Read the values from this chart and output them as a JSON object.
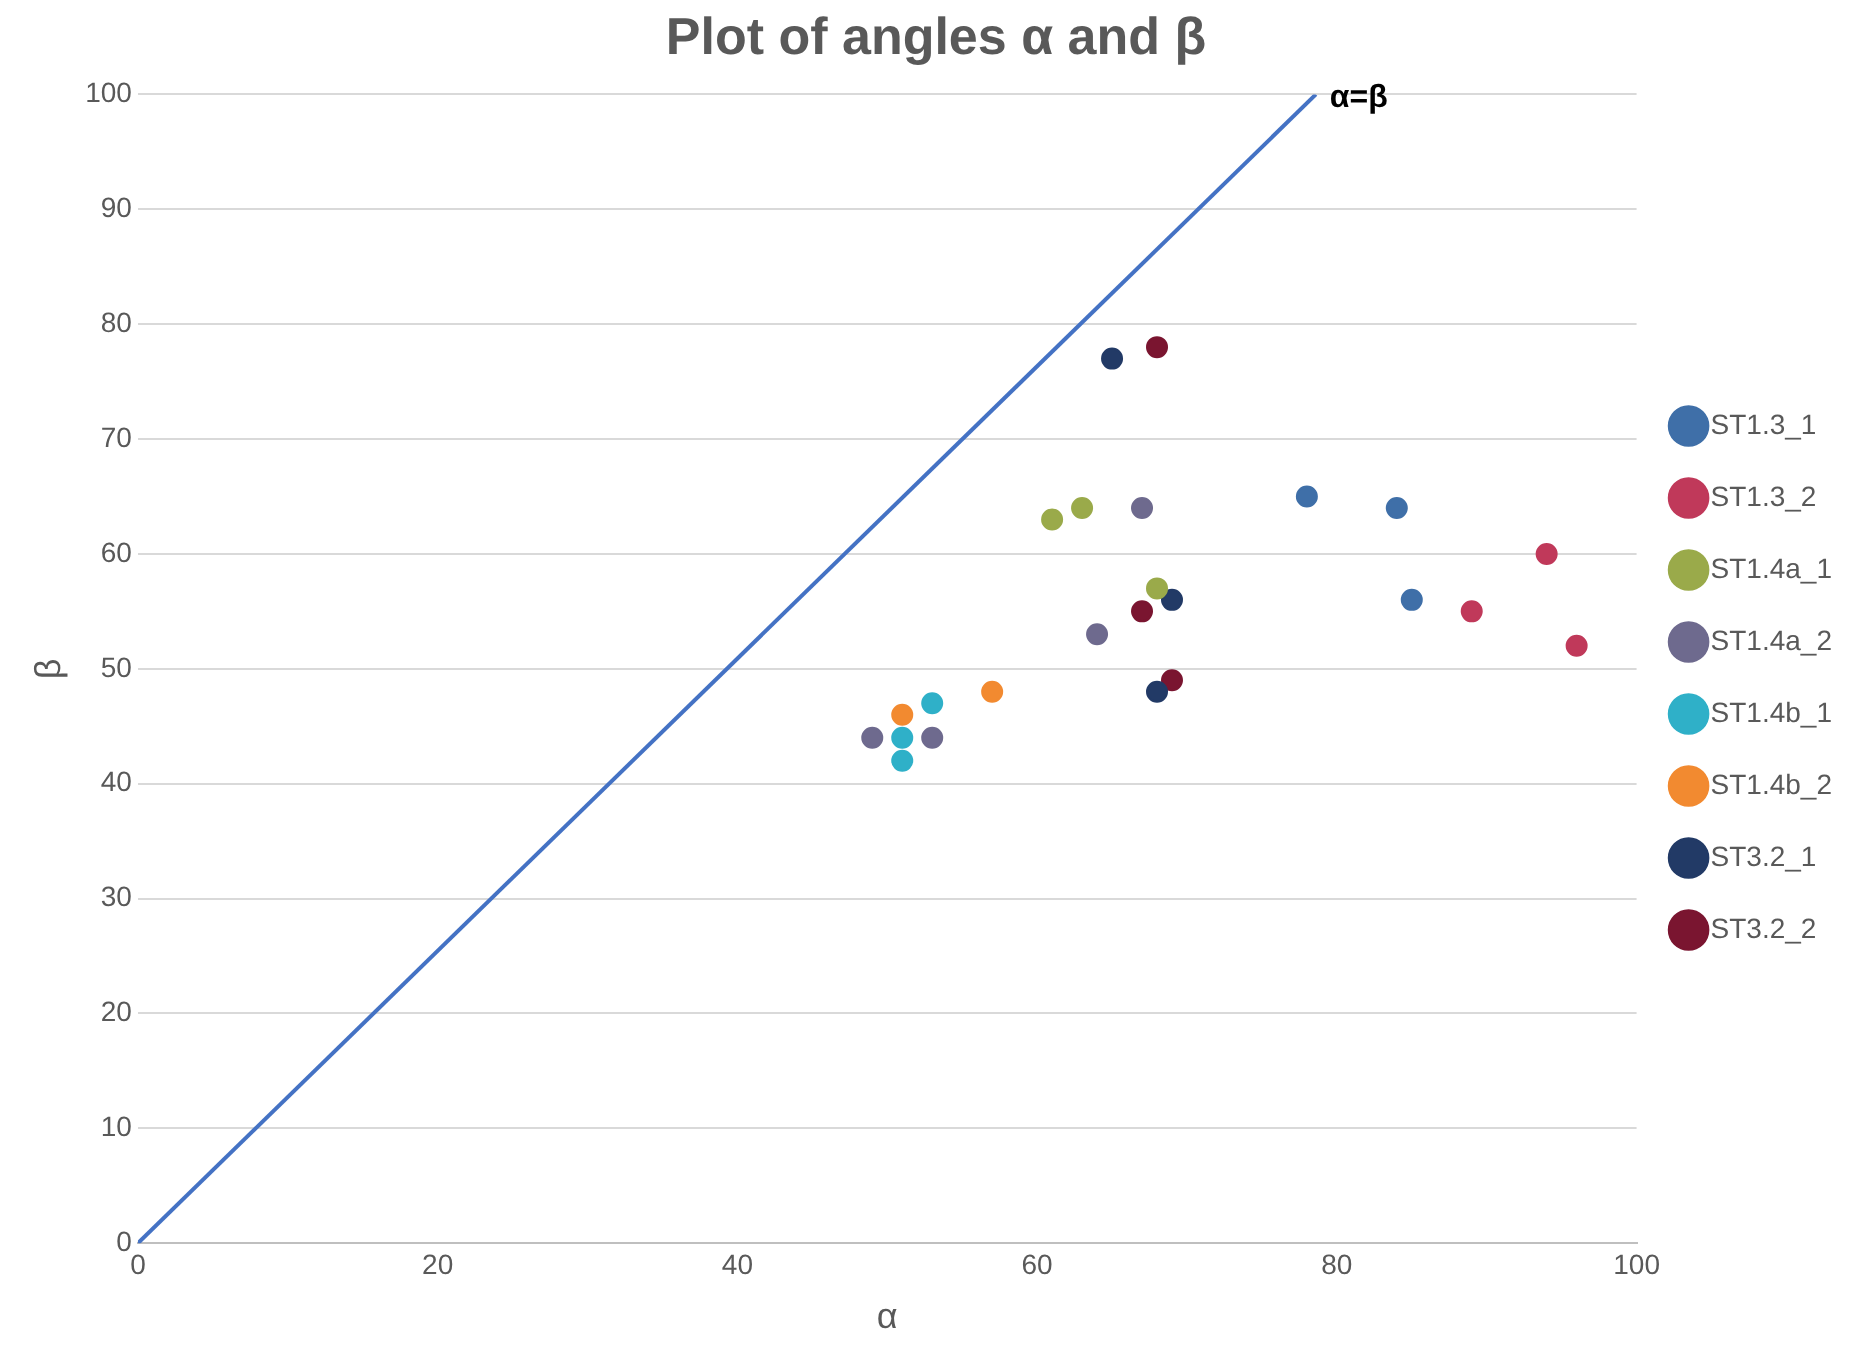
{
  "chart_data": {
    "type": "scatter",
    "title": "Plot of angles α and β",
    "xlabel": "α",
    "ylabel": "β",
    "xlim": [
      0,
      100
    ],
    "xticks": [
      0,
      20,
      40,
      60,
      80,
      100
    ],
    "ylim": [
      0,
      100
    ],
    "yticks": [
      0,
      10,
      20,
      30,
      40,
      50,
      60,
      70,
      80,
      90,
      100
    ],
    "grid": "y",
    "legend": "right",
    "marker": "circle",
    "annotations": [
      {
        "text": "α=β",
        "x": 79,
        "y": 100
      }
    ],
    "series": [
      {
        "name": "ST1.3_1",
        "color": "#3f6fa8",
        "x": [
          78,
          84,
          85
        ],
        "values": [
          65,
          64,
          56
        ]
      },
      {
        "name": "ST1.3_2",
        "color": "#c0395a",
        "x": [
          94,
          89,
          96
        ],
        "values": [
          60,
          55,
          52
        ]
      },
      {
        "name": "ST1.4a_1",
        "color": "#9aaa4a",
        "x": [
          61,
          63,
          68
        ],
        "values": [
          63,
          64,
          57
        ]
      },
      {
        "name": "ST1.4a_2",
        "color": "#6e6a8e",
        "x": [
          67,
          64,
          49,
          53
        ],
        "values": [
          64,
          53,
          44,
          44
        ]
      },
      {
        "name": "ST1.4b_1",
        "color": "#2fb0c8",
        "x": [
          53,
          51,
          51
        ],
        "values": [
          47,
          44,
          42
        ]
      },
      {
        "name": "ST1.4b_2",
        "color": "#f28a30",
        "x": [
          57,
          51
        ],
        "values": [
          48,
          46
        ]
      },
      {
        "name": "ST3.2_1",
        "color": "#223a66",
        "x": [
          65,
          69,
          68
        ],
        "values": [
          77,
          56,
          48
        ]
      },
      {
        "name": "ST3.2_2",
        "color": "#7a1530",
        "x": [
          68,
          67,
          69
        ],
        "values": [
          78,
          55,
          49
        ]
      },
      {
        "type": "line",
        "color": "#4472c4",
        "x": [
          0,
          78.6
        ],
        "values": [
          0,
          100
        ],
        "marker": "none"
      }
    ]
  }
}
